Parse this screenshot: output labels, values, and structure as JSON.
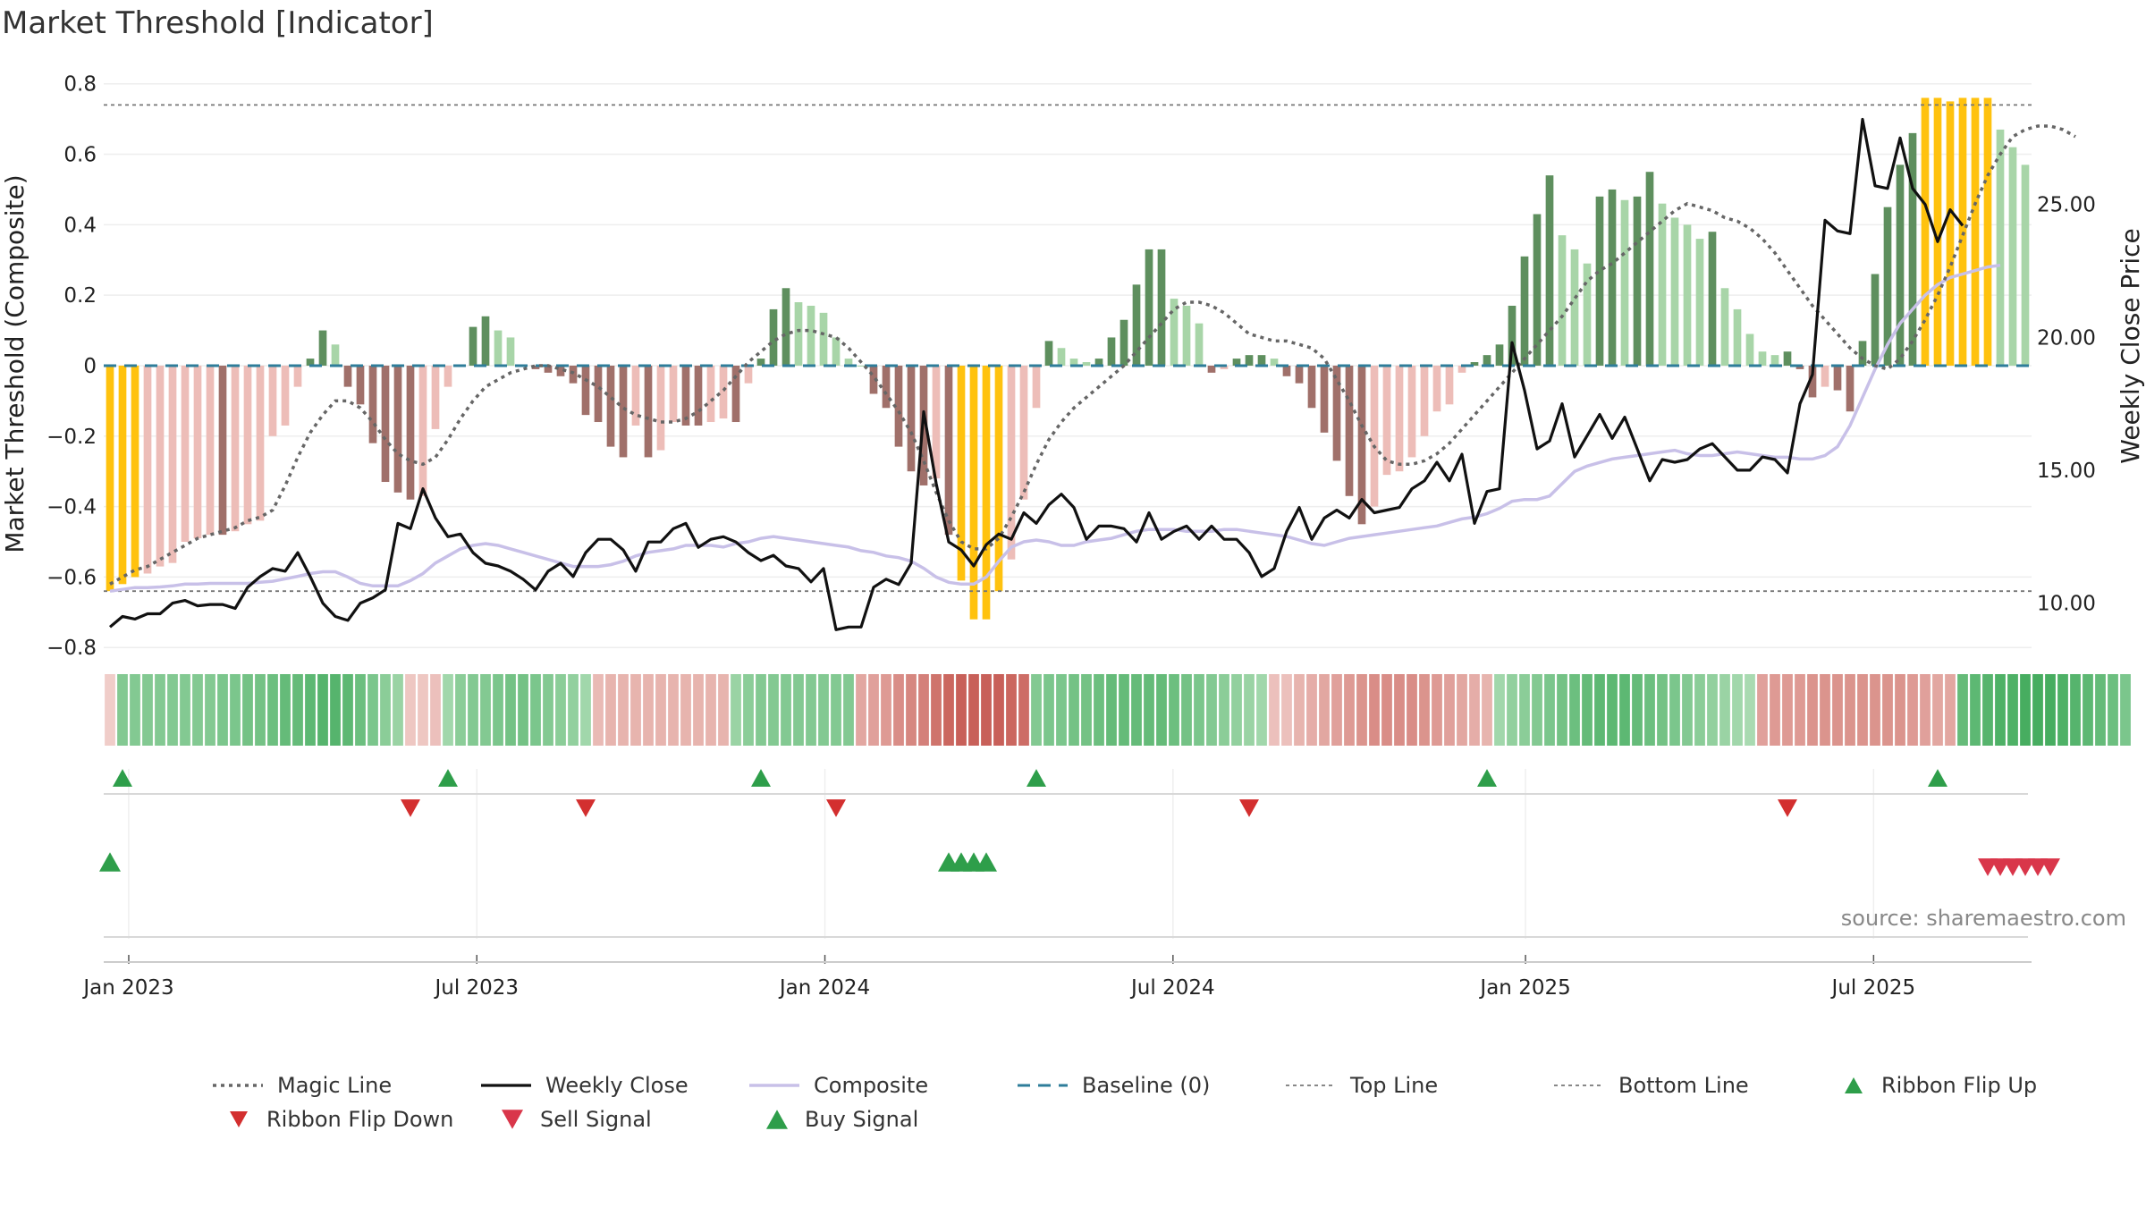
{
  "title": "Market Threshold [Indicator]",
  "source": "source: sharemaestro.com",
  "colors": {
    "gold": "#FFC20E",
    "bull_strong": "#5E8F5E",
    "bull_weak": "#A8D5A8",
    "bear_strong": "#A0706A",
    "bear_weak": "#EDBDB8",
    "weekly_close": "#111111",
    "magic_line": "#666666",
    "composite": "#C8C0E8",
    "baseline": "#2E7D9A",
    "ref_lines": "#777777",
    "buy": "#2E9E4A",
    "sell": "#D9364A",
    "flip_down": "#D32F2F"
  },
  "chart_data": {
    "type": "bar",
    "title": "Market Threshold [Indicator]",
    "ylabel": "Market Threshold (Composite)",
    "y2label": "Weekly Close Price",
    "ylim": [
      -0.84,
      0.85
    ],
    "y2lim": [
      7.8,
      30.2
    ],
    "yticks": [
      "−0.8",
      "−0.6",
      "−0.4",
      "−0.2",
      "0",
      "0.2",
      "0.4",
      "0.6",
      "0.8"
    ],
    "y2ticks": [
      "10.00",
      "15.00",
      "20.00",
      "25.00"
    ],
    "xticks": [
      "Jan 2023",
      "Jul 2023",
      "Jan 2024",
      "Jul 2024",
      "Jan 2025",
      "Jul 2025"
    ],
    "grid": true,
    "top_line": 0.74,
    "bottom_line": -0.64,
    "baseline": 0,
    "composite_bars": [
      -0.64,
      -0.62,
      -0.6,
      -0.59,
      -0.57,
      -0.56,
      -0.5,
      -0.49,
      -0.48,
      -0.48,
      -0.47,
      -0.45,
      -0.44,
      -0.2,
      -0.17,
      -0.06,
      0.02,
      0.1,
      0.06,
      -0.06,
      -0.11,
      -0.22,
      -0.33,
      -0.36,
      -0.38,
      -0.37,
      -0.18,
      -0.06,
      0,
      0.11,
      0.14,
      0.1,
      0.08,
      0,
      -0.01,
      -0.02,
      -0.03,
      -0.05,
      -0.14,
      -0.16,
      -0.23,
      -0.26,
      -0.17,
      -0.26,
      -0.24,
      -0.16,
      -0.17,
      -0.17,
      -0.16,
      -0.15,
      -0.16,
      -0.05,
      0.02,
      0.16,
      0.22,
      0.18,
      0.17,
      0.15,
      0.08,
      0.02,
      0,
      -0.08,
      -0.12,
      -0.23,
      -0.3,
      -0.34,
      -0.32,
      -0.48,
      -0.61,
      -0.72,
      -0.72,
      -0.64,
      -0.55,
      -0.38,
      -0.12,
      0.07,
      0.05,
      0.02,
      0.01,
      0.02,
      0.08,
      0.13,
      0.23,
      0.33,
      0.33,
      0.19,
      0.17,
      0.12,
      -0.02,
      -0.01,
      0.02,
      0.03,
      0.03,
      0.02,
      -0.03,
      -0.05,
      -0.12,
      -0.19,
      -0.27,
      -0.37,
      -0.45,
      -0.4,
      -0.31,
      -0.3,
      -0.26,
      -0.2,
      -0.13,
      -0.11,
      -0.02,
      0.01,
      0.03,
      0.06,
      0.17,
      0.31,
      0.43,
      0.54,
      0.37,
      0.33,
      0.29,
      0.48,
      0.5,
      0.47,
      0.48,
      0.55,
      0.46,
      0.42,
      0.4,
      0.36,
      0.38,
      0.22,
      0.16,
      0.09,
      0.04,
      0.03,
      0.04,
      -0.01,
      -0.09,
      -0.06,
      -0.07,
      -0.13,
      0.07,
      0.26,
      0.45,
      0.57,
      0.66,
      0.76,
      0.76,
      0.75,
      0.76,
      0.76,
      0.76,
      0.67,
      0.62,
      0.57
    ],
    "series": [
      {
        "name": "Magic Line",
        "y": [
          -0.62,
          -0.6,
          -0.58,
          -0.57,
          -0.55,
          -0.53,
          -0.51,
          -0.49,
          -0.48,
          -0.47,
          -0.46,
          -0.44,
          -0.43,
          -0.41,
          -0.34,
          -0.26,
          -0.19,
          -0.14,
          -0.1,
          -0.1,
          -0.12,
          -0.16,
          -0.21,
          -0.25,
          -0.27,
          -0.28,
          -0.26,
          -0.21,
          -0.15,
          -0.1,
          -0.06,
          -0.04,
          -0.02,
          -0.01,
          0,
          0,
          -0.01,
          -0.02,
          -0.04,
          -0.06,
          -0.09,
          -0.12,
          -0.14,
          -0.15,
          -0.16,
          -0.16,
          -0.15,
          -0.13,
          -0.1,
          -0.07,
          -0.03,
          0.01,
          0.04,
          0.07,
          0.09,
          0.1,
          0.1,
          0.09,
          0.08,
          0.05,
          0.01,
          -0.03,
          -0.08,
          -0.13,
          -0.19,
          -0.27,
          -0.36,
          -0.44,
          -0.5,
          -0.52,
          -0.52,
          -0.49,
          -0.43,
          -0.36,
          -0.28,
          -0.21,
          -0.16,
          -0.12,
          -0.09,
          -0.06,
          -0.03,
          0,
          0.04,
          0.08,
          0.12,
          0.16,
          0.18,
          0.18,
          0.17,
          0.15,
          0.12,
          0.09,
          0.08,
          0.07,
          0.07,
          0.06,
          0.05,
          0.02,
          -0.04,
          -0.1,
          -0.17,
          -0.23,
          -0.27,
          -0.28,
          -0.28,
          -0.27,
          -0.25,
          -0.22,
          -0.18,
          -0.14,
          -0.1,
          -0.06,
          -0.02,
          0.02,
          0.06,
          0.1,
          0.14,
          0.19,
          0.24,
          0.27,
          0.29,
          0.32,
          0.35,
          0.38,
          0.41,
          0.44,
          0.46,
          0.45,
          0.44,
          0.42,
          0.41,
          0.39,
          0.36,
          0.32,
          0.27,
          0.22,
          0.17,
          0.13,
          0.09,
          0.05,
          0.02,
          0,
          -0.01,
          0.02,
          0.07,
          0.13,
          0.2,
          0.28,
          0.37,
          0.46,
          0.54,
          0.6,
          0.65,
          0.67,
          0.68,
          0.68,
          0.67,
          0.65
        ]
      },
      {
        "name": "Composite",
        "y": [
          -0.64,
          -0.635,
          -0.63,
          -0.63,
          -0.628,
          -0.625,
          -0.62,
          -0.62,
          -0.618,
          -0.618,
          -0.618,
          -0.618,
          -0.615,
          -0.612,
          -0.605,
          -0.598,
          -0.59,
          -0.585,
          -0.585,
          -0.6,
          -0.618,
          -0.625,
          -0.625,
          -0.625,
          -0.61,
          -0.59,
          -0.56,
          -0.54,
          -0.52,
          -0.51,
          -0.505,
          -0.51,
          -0.52,
          -0.53,
          -0.54,
          -0.55,
          -0.56,
          -0.57,
          -0.57,
          -0.57,
          -0.565,
          -0.555,
          -0.54,
          -0.53,
          -0.525,
          -0.52,
          -0.51,
          -0.51,
          -0.51,
          -0.515,
          -0.505,
          -0.5,
          -0.49,
          -0.485,
          -0.49,
          -0.495,
          -0.5,
          -0.505,
          -0.51,
          -0.515,
          -0.525,
          -0.53,
          -0.54,
          -0.545,
          -0.555,
          -0.575,
          -0.6,
          -0.615,
          -0.62,
          -0.62,
          -0.6,
          -0.555,
          -0.515,
          -0.5,
          -0.495,
          -0.5,
          -0.51,
          -0.51,
          -0.5,
          -0.495,
          -0.49,
          -0.48,
          -0.47,
          -0.465,
          -0.465,
          -0.465,
          -0.47,
          -0.47,
          -0.47,
          -0.465,
          -0.465,
          -0.47,
          -0.475,
          -0.48,
          -0.485,
          -0.495,
          -0.505,
          -0.51,
          -0.5,
          -0.49,
          -0.485,
          -0.48,
          -0.475,
          -0.47,
          -0.465,
          -0.46,
          -0.455,
          -0.445,
          -0.435,
          -0.43,
          -0.42,
          -0.405,
          -0.385,
          -0.38,
          -0.38,
          -0.37,
          -0.335,
          -0.3,
          -0.285,
          -0.275,
          -0.265,
          -0.26,
          -0.255,
          -0.25,
          -0.245,
          -0.24,
          -0.25,
          -0.255,
          -0.255,
          -0.25,
          -0.245,
          -0.25,
          -0.255,
          -0.26,
          -0.26,
          -0.265,
          -0.265,
          -0.255,
          -0.23,
          -0.17,
          -0.09,
          -0.01,
          0.06,
          0.12,
          0.16,
          0.2,
          0.23,
          0.25,
          0.26,
          0.27,
          0.28,
          0.285
        ]
      },
      {
        "name": "Weekly Close",
        "y": [
          9.1,
          9.5,
          9.4,
          9.6,
          9.6,
          10.0,
          10.1,
          9.9,
          9.95,
          9.95,
          9.8,
          10.6,
          11.0,
          11.3,
          11.2,
          11.9,
          11.0,
          10.0,
          9.5,
          9.35,
          10.0,
          10.2,
          10.5,
          13.0,
          12.8,
          14.3,
          13.2,
          12.5,
          12.6,
          11.9,
          11.5,
          11.4,
          11.2,
          10.9,
          10.5,
          11.2,
          11.5,
          11.0,
          11.9,
          12.4,
          12.4,
          12.0,
          11.2,
          12.3,
          12.3,
          12.8,
          13.0,
          12.1,
          12.4,
          12.5,
          12.3,
          11.9,
          11.6,
          11.8,
          11.4,
          11.3,
          10.8,
          11.3,
          9.0,
          9.1,
          9.1,
          10.6,
          10.9,
          10.7,
          11.5,
          17.2,
          14.5,
          12.3,
          12.0,
          11.4,
          12.2,
          12.6,
          12.4,
          13.4,
          13.0,
          13.7,
          14.1,
          13.6,
          12.4,
          12.9,
          12.9,
          12.8,
          12.3,
          13.4,
          12.4,
          12.7,
          12.9,
          12.4,
          12.9,
          12.4,
          12.4,
          11.9,
          11.0,
          11.3,
          12.7,
          13.6,
          12.4,
          13.2,
          13.5,
          13.2,
          13.9,
          13.4,
          13.5,
          13.6,
          14.3,
          14.6,
          15.3,
          14.6,
          15.6,
          13.0,
          14.2,
          14.3,
          19.8,
          18.0,
          15.8,
          16.1,
          17.5,
          15.5,
          16.3,
          17.1,
          16.2,
          17.0,
          15.8,
          14.6,
          15.4,
          15.3,
          15.4,
          15.8,
          16.0,
          15.5,
          15.0,
          15.0,
          15.5,
          15.4,
          14.9,
          17.5,
          18.6,
          24.4,
          24.0,
          23.9,
          28.2,
          25.7,
          25.6,
          27.5,
          25.6,
          25.0,
          23.6,
          24.8,
          24.2
        ]
      }
    ],
    "ribbon": [
      -0.1,
      0.55,
      0.55,
      0.55,
      0.55,
      0.55,
      0.55,
      0.55,
      0.55,
      0.6,
      0.6,
      0.65,
      0.65,
      0.7,
      0.75,
      0.75,
      0.8,
      0.85,
      0.85,
      0.8,
      0.7,
      0.6,
      0.5,
      0.4,
      -0.15,
      -0.15,
      -0.2,
      0.35,
      0.5,
      0.55,
      0.55,
      0.6,
      0.65,
      0.65,
      0.6,
      0.55,
      0.5,
      0.45,
      0.35,
      -0.25,
      -0.3,
      -0.3,
      -0.3,
      -0.3,
      -0.3,
      -0.3,
      -0.3,
      -0.3,
      -0.3,
      -0.3,
      0.4,
      0.5,
      0.55,
      0.55,
      0.55,
      0.55,
      0.55,
      0.55,
      0.55,
      0.55,
      -0.4,
      -0.45,
      -0.5,
      -0.6,
      -0.65,
      -0.7,
      -0.8,
      -0.9,
      -0.95,
      -0.95,
      -0.95,
      -0.95,
      -0.9,
      -0.85,
      0.55,
      0.6,
      0.6,
      0.65,
      0.65,
      0.7,
      0.75,
      0.75,
      0.75,
      0.75,
      0.75,
      0.7,
      0.65,
      0.6,
      0.55,
      0.5,
      0.45,
      0.4,
      0.35,
      -0.2,
      -0.2,
      -0.3,
      -0.35,
      -0.4,
      -0.45,
      -0.5,
      -0.55,
      -0.6,
      -0.6,
      -0.6,
      -0.6,
      -0.55,
      -0.5,
      -0.45,
      -0.4,
      -0.35,
      -0.3,
      0.35,
      0.45,
      0.5,
      0.55,
      0.6,
      0.65,
      0.7,
      0.75,
      0.8,
      0.8,
      0.8,
      0.75,
      0.7,
      0.65,
      0.6,
      0.55,
      0.5,
      0.45,
      0.4,
      0.35,
      0.3,
      -0.45,
      -0.5,
      -0.5,
      -0.5,
      -0.55,
      -0.55,
      -0.55,
      -0.55,
      -0.55,
      -0.55,
      -0.55,
      -0.55,
      -0.5,
      -0.45,
      -0.4,
      -0.4,
      0.75,
      0.8,
      0.85,
      0.9,
      0.9,
      0.95,
      0.95,
      0.95,
      0.9,
      0.85,
      0.8,
      0.75,
      0.7,
      0.6
    ],
    "ribbon_flip_up_weeks": [
      1,
      27,
      52,
      74,
      110,
      146
    ],
    "ribbon_flip_down_weeks": [
      24,
      38,
      58,
      91,
      134
    ],
    "buy_signal_weeks": [
      0,
      67,
      68,
      69,
      70
    ],
    "sell_signal_weeks": [
      150,
      151,
      152,
      153,
      154,
      155
    ]
  },
  "legend": [
    {
      "label": "Magic Line",
      "icon": "dotted-line"
    },
    {
      "label": "Weekly Close",
      "icon": "solid-line"
    },
    {
      "label": "Composite",
      "icon": "lavender-line"
    },
    {
      "label": "Baseline (0)",
      "icon": "dashed-line"
    },
    {
      "label": "Top Line",
      "icon": "thin-dotted-line"
    },
    {
      "label": "Bottom Line",
      "icon": "thin-dotted-line"
    },
    {
      "label": "Ribbon Flip Up",
      "icon": "triangle-up-icon"
    },
    {
      "label": "Ribbon Flip Down",
      "icon": "triangle-down-icon"
    },
    {
      "label": "Sell Signal",
      "icon": "triangle-down-icon"
    },
    {
      "label": "Buy Signal",
      "icon": "triangle-up-icon"
    }
  ]
}
